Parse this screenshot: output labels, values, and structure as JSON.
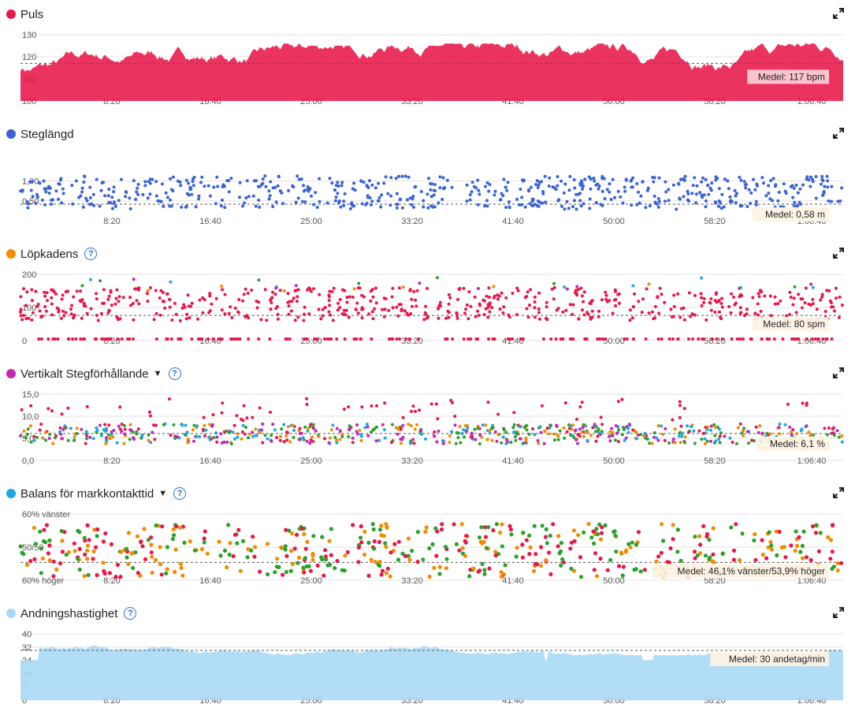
{
  "x_ticks": [
    "8:20",
    "16:40",
    "25:00",
    "33:20",
    "41:40",
    "50:00",
    "58:20",
    "1:06:40"
  ],
  "panels": [
    {
      "id": "puls",
      "title": "Puls",
      "color": "#e8174a",
      "help": false,
      "caret": false,
      "y_ticks": [
        "130",
        "120",
        "110",
        "100"
      ],
      "mean_label": "Medel: 117 bpm",
      "chart_data": {
        "type": "area",
        "ylim": [
          100,
          130
        ],
        "mean": 117,
        "series": [
          {
            "values_description": "heart rate ~105-125 bpm"
          }
        ]
      }
    },
    {
      "id": "steglangd",
      "title": "Steglängd",
      "color": "#3a63d3",
      "help": false,
      "caret": false,
      "y_ticks": [
        "1,00",
        "0,50"
      ],
      "mean_label": "Medel: 0,58 m",
      "chart_data": {
        "type": "scatter",
        "ylim": [
          0,
          1.5
        ],
        "mean": 0.58
      }
    },
    {
      "id": "lopkadens",
      "title": "Löpkadens",
      "color": "#f08c00",
      "help": true,
      "caret": false,
      "y_ticks": [
        "200",
        "100",
        "0"
      ],
      "mean_label": "Medel: 80 spm",
      "chart_data": {
        "type": "scatter",
        "ylim": [
          0,
          200
        ],
        "mean": 80
      }
    },
    {
      "id": "vertikalt",
      "title": "Vertikalt Stegförhållande",
      "color": "#c229b5",
      "help": true,
      "caret": true,
      "y_ticks": [
        "15,0",
        "10,0",
        "5,0",
        "0,0"
      ],
      "mean_label": "Medel: 6,1 %",
      "chart_data": {
        "type": "scatter",
        "ylim": [
          0,
          15
        ],
        "mean": 6.1
      }
    },
    {
      "id": "balans",
      "title": "Balans för markkontakttid",
      "color": "#1ea7e6",
      "help": true,
      "caret": true,
      "y_ticks": [
        "60% vänster",
        "50/50",
        "60% höger"
      ],
      "mean_label": "Medel: 46,1% vänster/53,9% höger",
      "chart_data": {
        "type": "scatter",
        "mean_left_pct": 46.1,
        "mean_right_pct": 53.9
      }
    },
    {
      "id": "andning",
      "title": "Andningshastighet",
      "color": "#a9daf5",
      "help": true,
      "caret": false,
      "y_ticks": [
        "40",
        "32",
        "24",
        "16",
        "8",
        "0"
      ],
      "mean_label": "Medel: 30 andetag/min",
      "chart_data": {
        "type": "area",
        "ylim": [
          0,
          40
        ],
        "mean": 30
      }
    }
  ],
  "help_glyph": "?",
  "caret_glyph": "▼",
  "icons": {
    "expand": "expand-icon",
    "help": "help-icon"
  }
}
